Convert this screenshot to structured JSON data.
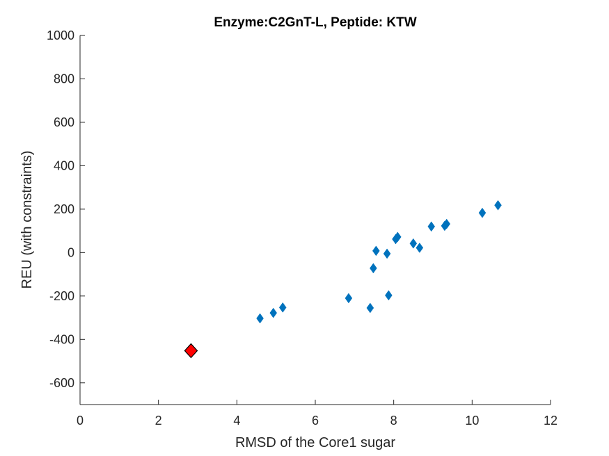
{
  "chart_data": {
    "type": "scatter",
    "title": "Enzyme:C2GnT-L, Peptide: KTW",
    "xlabel": "RMSD of the Core1 sugar",
    "ylabel": "REU (with constraints)",
    "xlim": [
      0,
      12
    ],
    "ylim": [
      -700,
      1000
    ],
    "xticks": [
      0,
      2,
      4,
      6,
      8,
      10,
      12
    ],
    "yticks": [
      -600,
      -400,
      -200,
      0,
      200,
      400,
      600,
      800,
      1000
    ],
    "grid": false,
    "series": [
      {
        "marker": "diamond",
        "color": "#0072BD",
        "points": [
          {
            "x": 4.59,
            "y": -303
          },
          {
            "x": 4.93,
            "y": -278
          },
          {
            "x": 5.17,
            "y": -253
          },
          {
            "x": 6.85,
            "y": -210
          },
          {
            "x": 7.4,
            "y": -255
          },
          {
            "x": 7.48,
            "y": -72
          },
          {
            "x": 7.55,
            "y": 8
          },
          {
            "x": 7.83,
            "y": -5
          },
          {
            "x": 7.87,
            "y": -197
          },
          {
            "x": 8.05,
            "y": 62
          },
          {
            "x": 8.1,
            "y": 72
          },
          {
            "x": 8.5,
            "y": 42
          },
          {
            "x": 8.66,
            "y": 22
          },
          {
            "x": 8.96,
            "y": 120
          },
          {
            "x": 9.3,
            "y": 123
          },
          {
            "x": 9.35,
            "y": 132
          },
          {
            "x": 10.26,
            "y": 183
          },
          {
            "x": 10.66,
            "y": 218
          }
        ]
      },
      {
        "marker": "diamond",
        "color": "#FF0000",
        "highlight": true,
        "points": [
          {
            "x": 2.83,
            "y": -452
          }
        ]
      }
    ]
  }
}
